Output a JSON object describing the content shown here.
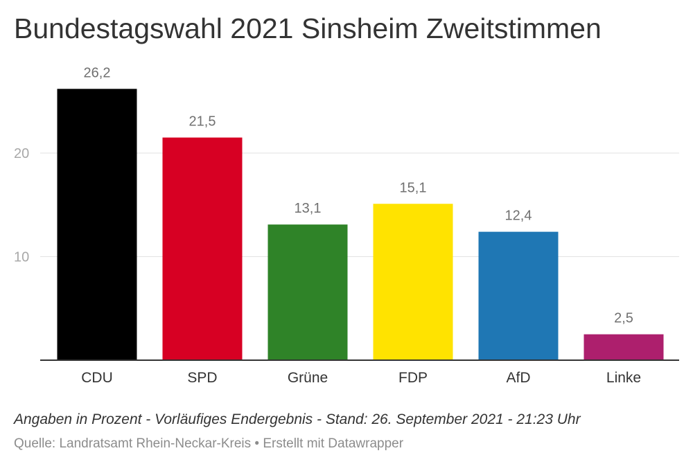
{
  "chart_data": {
    "type": "bar",
    "title": "Bundestagswahl 2021 Sinsheim Zweitstimmen",
    "categories": [
      "CDU",
      "SPD",
      "Grüne",
      "FDP",
      "AfD",
      "Linke"
    ],
    "values": [
      26.2,
      21.5,
      13.1,
      15.1,
      12.4,
      2.5
    ],
    "value_labels": [
      "26,2",
      "21,5",
      "13,1",
      "15,1",
      "12,4",
      "2,5"
    ],
    "colors": [
      "#000000",
      "#d70023",
      "#2f8328",
      "#ffe300",
      "#1f77b4",
      "#ad1f6d"
    ],
    "yticks": [
      {
        "value": 10,
        "label": "10"
      },
      {
        "value": 20,
        "label": "20"
      }
    ],
    "ylim": [
      0,
      30
    ],
    "grid": true,
    "note": "Angaben in Prozent - Vorläufiges Endergebnis - Stand: 26. September 2021 - 21:23 Uhr",
    "source": "Quelle: Landratsamt Rhein-Neckar-Kreis • Erstellt mit Datawrapper"
  }
}
